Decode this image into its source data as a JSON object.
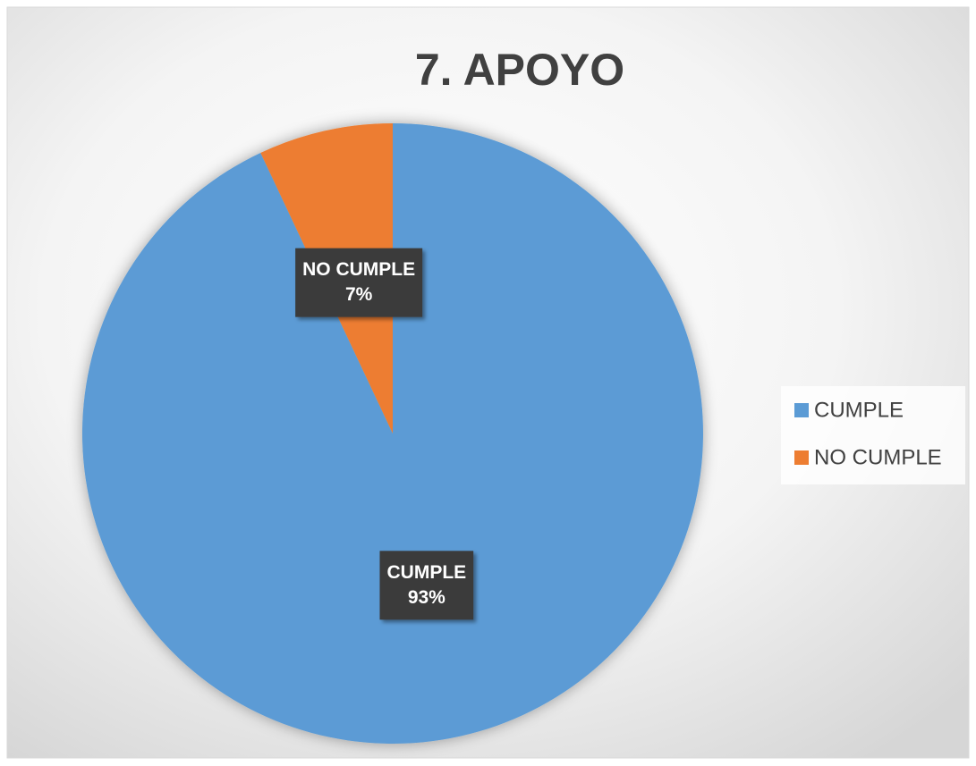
{
  "chart_data": {
    "type": "pie",
    "title": "7. APOYO",
    "categories": [
      "CUMPLE",
      "NO CUMPLE"
    ],
    "values": [
      93,
      7
    ],
    "value_labels": [
      "93%",
      "7%"
    ],
    "colors": [
      "#5b9bd5",
      "#ed7d31"
    ],
    "legend": "right"
  }
}
